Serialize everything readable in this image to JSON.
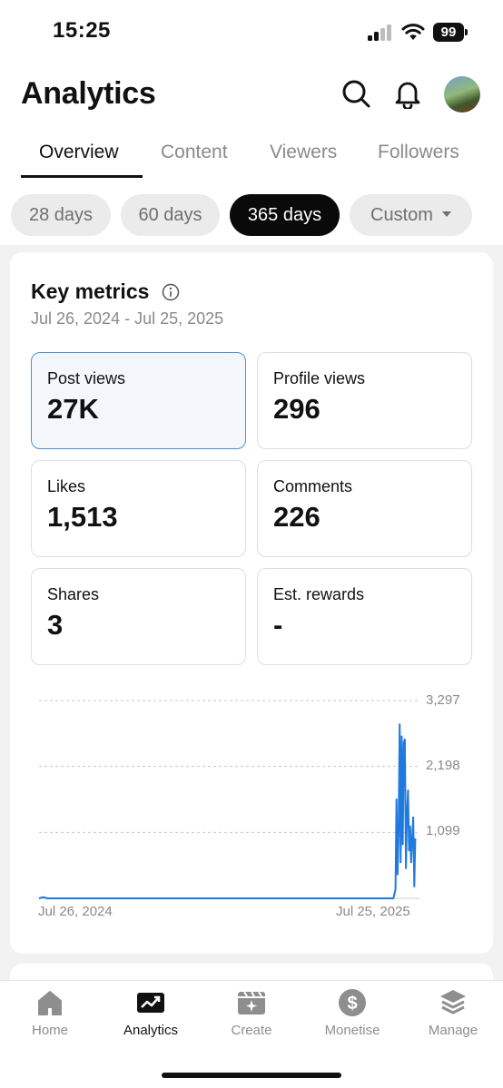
{
  "status_bar": {
    "time": "15:25",
    "battery": "99"
  },
  "header": {
    "title": "Analytics",
    "icons": [
      "search-icon",
      "bell-icon",
      "avatar"
    ]
  },
  "tabs": [
    {
      "label": "Overview",
      "active": true
    },
    {
      "label": "Content",
      "active": false
    },
    {
      "label": "Viewers",
      "active": false
    },
    {
      "label": "Followers",
      "active": false
    }
  ],
  "date_filters": [
    {
      "label": "28 days",
      "active": false
    },
    {
      "label": "60 days",
      "active": false
    },
    {
      "label": "365 days",
      "active": true
    },
    {
      "label": "Custom",
      "active": false,
      "icon": "caret-down-icon"
    }
  ],
  "key_metrics": {
    "title": "Key metrics",
    "date_range": "Jul 26, 2024 - Jul 25, 2025",
    "metrics": [
      {
        "label": "Post views",
        "value": "27K",
        "selected": true
      },
      {
        "label": "Profile views",
        "value": "296",
        "selected": false
      },
      {
        "label": "Likes",
        "value": "1,513",
        "selected": false
      },
      {
        "label": "Comments",
        "value": "226",
        "selected": false
      },
      {
        "label": "Shares",
        "value": "3",
        "selected": false
      },
      {
        "label": "Est. rewards",
        "value": "-",
        "selected": false
      }
    ]
  },
  "chart_data": {
    "type": "line",
    "title": "",
    "xlabel": "",
    "ylabel": "",
    "x_tick_labels": [
      "Jul 26, 2024",
      "Jul 25, 2025"
    ],
    "y_tick_labels": [
      "3,297",
      "2,198",
      "1,099"
    ],
    "ylim": [
      0,
      3297
    ],
    "grid": true,
    "color": "#1f7ae0",
    "series": [
      {
        "values": [
          {
            "day": 0,
            "views": 0
          },
          {
            "day": 4,
            "views": 20
          },
          {
            "day": 8,
            "views": 0
          },
          {
            "day": 340,
            "views": 0
          },
          {
            "day": 342,
            "views": 150
          },
          {
            "day": 343,
            "views": 1650
          },
          {
            "day": 344,
            "views": 400
          },
          {
            "day": 345,
            "views": 1100
          },
          {
            "day": 346,
            "views": 2900
          },
          {
            "day": 347,
            "views": 600
          },
          {
            "day": 348,
            "views": 2700
          },
          {
            "day": 349,
            "views": 900
          },
          {
            "day": 350,
            "views": 2600
          },
          {
            "day": 351,
            "views": 2650
          },
          {
            "day": 352,
            "views": 500
          },
          {
            "day": 353,
            "views": 1400
          },
          {
            "day": 354,
            "views": 1800
          },
          {
            "day": 355,
            "views": 800
          },
          {
            "day": 356,
            "views": 1200
          },
          {
            "day": 357,
            "views": 600
          },
          {
            "day": 358,
            "views": 1000
          },
          {
            "day": 359,
            "views": 1350
          },
          {
            "day": 360,
            "views": 200
          },
          {
            "day": 361,
            "views": 1000
          }
        ]
      }
    ]
  },
  "bottom_nav": [
    {
      "label": "Home",
      "icon": "home-icon",
      "active": false
    },
    {
      "label": "Analytics",
      "icon": "analytics-icon",
      "active": true
    },
    {
      "label": "Create",
      "icon": "create-icon",
      "active": false
    },
    {
      "label": "Monetise",
      "icon": "dollar-icon",
      "active": false
    },
    {
      "label": "Manage",
      "icon": "layers-icon",
      "active": false
    }
  ]
}
